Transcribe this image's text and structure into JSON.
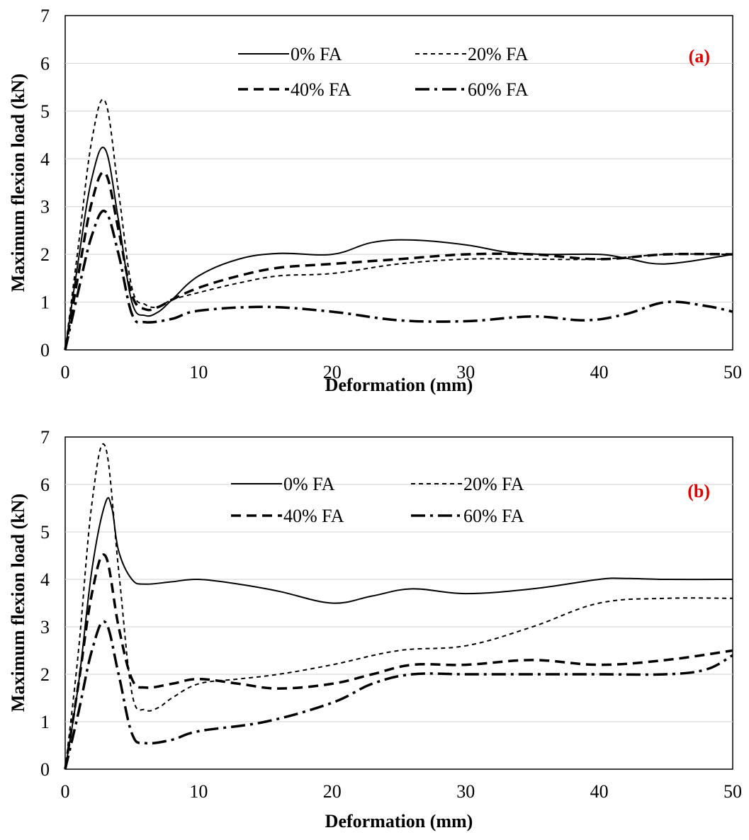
{
  "colors": {
    "axis": "#000000",
    "grid": "#d9d9d9",
    "series": "#000000",
    "panel_label": "#e00000"
  },
  "chart_data": [
    {
      "type": "line",
      "panel_label": "(a)",
      "xlabel": "Deformation (mm)",
      "ylabel": "Maximum flexion load (kN)",
      "xlim": [
        0,
        50
      ],
      "ylim": [
        0,
        7
      ],
      "xticks": [
        0,
        10,
        20,
        30,
        40,
        50
      ],
      "yticks": [
        0,
        1,
        2,
        3,
        4,
        5,
        6,
        7
      ],
      "grid": true,
      "legend_position": "top-center",
      "series": [
        {
          "name": "0% FA",
          "style": "solid",
          "x": [
            0,
            1,
            2,
            3,
            4,
            5,
            6,
            7,
            8,
            10,
            13,
            16,
            20,
            23,
            26,
            30,
            33,
            36,
            40,
            42,
            45,
            50
          ],
          "y": [
            0,
            1.9,
            3.6,
            4.2,
            2.7,
            1.0,
            0.72,
            0.8,
            1.05,
            1.55,
            1.9,
            2.02,
            2.0,
            2.25,
            2.3,
            2.2,
            2.05,
            2.0,
            2.0,
            1.92,
            1.8,
            2.0
          ]
        },
        {
          "name": "20% FA",
          "style": "dotted",
          "x": [
            0,
            1,
            2,
            3,
            4,
            5,
            6,
            7,
            8,
            10,
            13,
            16,
            20,
            25,
            30,
            35,
            40,
            45,
            50
          ],
          "y": [
            0,
            2.2,
            4.4,
            5.2,
            3.3,
            1.3,
            0.95,
            0.9,
            1.05,
            1.2,
            1.4,
            1.55,
            1.6,
            1.8,
            1.9,
            1.9,
            1.9,
            2.0,
            2.0
          ]
        },
        {
          "name": "40% FA",
          "style": "dashed",
          "x": [
            0,
            1,
            2,
            3,
            4,
            5,
            6,
            7,
            8,
            10,
            13,
            16,
            20,
            25,
            30,
            35,
            40,
            45,
            50
          ],
          "y": [
            0,
            1.6,
            3.1,
            3.7,
            2.5,
            1.15,
            0.85,
            0.9,
            1.05,
            1.3,
            1.55,
            1.72,
            1.8,
            1.9,
            2.0,
            2.0,
            1.9,
            2.0,
            2.0
          ]
        },
        {
          "name": "60% FA",
          "style": "dashdot",
          "x": [
            0,
            1,
            2,
            3,
            4,
            5,
            6,
            8,
            10,
            15,
            20,
            25,
            30,
            35,
            39,
            42,
            45,
            48,
            50
          ],
          "y": [
            0,
            1.25,
            2.4,
            2.9,
            2.0,
            0.75,
            0.58,
            0.65,
            0.82,
            0.9,
            0.8,
            0.62,
            0.6,
            0.7,
            0.62,
            0.75,
            1.0,
            0.92,
            0.8
          ]
        }
      ]
    },
    {
      "type": "line",
      "panel_label": "(b)",
      "xlabel": "Deformation (mm)",
      "ylabel": "Maximum flexion load (kN)",
      "xlim": [
        0,
        50
      ],
      "ylim": [
        0,
        7
      ],
      "xticks": [
        0,
        10,
        20,
        30,
        40,
        50
      ],
      "yticks": [
        0,
        1,
        2,
        3,
        4,
        5,
        6,
        7
      ],
      "grid": true,
      "legend_position": "top-center",
      "series": [
        {
          "name": "0% FA",
          "style": "solid",
          "x": [
            0,
            1,
            2,
            3,
            3.5,
            4,
            5,
            6,
            8,
            10,
            13,
            16,
            20,
            23,
            26,
            30,
            35,
            40,
            42,
            45,
            50
          ],
          "y": [
            0,
            1.8,
            4.2,
            5.6,
            5.5,
            4.6,
            4.0,
            3.9,
            3.95,
            4.0,
            3.9,
            3.75,
            3.5,
            3.65,
            3.8,
            3.7,
            3.8,
            4.0,
            4.02,
            4.0,
            4.0
          ]
        },
        {
          "name": "20% FA",
          "style": "dotted",
          "x": [
            0,
            1,
            2,
            3,
            4,
            5,
            6,
            7,
            8,
            10,
            13,
            16,
            20,
            25,
            30,
            35,
            40,
            45,
            50
          ],
          "y": [
            0,
            2.5,
            5.6,
            6.8,
            4.2,
            1.6,
            1.25,
            1.3,
            1.5,
            1.8,
            1.9,
            2.0,
            2.2,
            2.5,
            2.6,
            3.0,
            3.5,
            3.6,
            3.6
          ]
        },
        {
          "name": "40% FA",
          "style": "dashed",
          "x": [
            0,
            1,
            2,
            3,
            4,
            5,
            6,
            8,
            10,
            13,
            16,
            20,
            23,
            26,
            30,
            35,
            40,
            45,
            50
          ],
          "y": [
            0,
            1.8,
            3.7,
            4.5,
            3.0,
            1.9,
            1.72,
            1.8,
            1.9,
            1.8,
            1.7,
            1.8,
            2.0,
            2.2,
            2.2,
            2.3,
            2.2,
            2.3,
            2.5
          ]
        },
        {
          "name": "60% FA",
          "style": "dashdot",
          "x": [
            0,
            1,
            2,
            3,
            4,
            5,
            6,
            8,
            10,
            15,
            20,
            23,
            26,
            30,
            35,
            40,
            45,
            48,
            50
          ],
          "y": [
            0,
            1.2,
            2.5,
            3.1,
            2.0,
            0.75,
            0.55,
            0.62,
            0.8,
            1.0,
            1.4,
            1.8,
            2.0,
            2.0,
            2.0,
            2.0,
            2.0,
            2.1,
            2.4
          ]
        }
      ]
    }
  ]
}
